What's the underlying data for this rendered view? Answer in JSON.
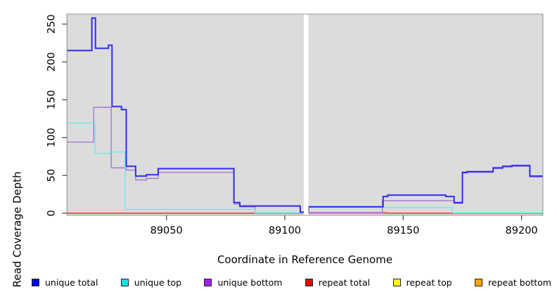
{
  "chart_data": {
    "type": "line",
    "subtype": "step-coverage-plot",
    "title": "",
    "xlabel": "Coordinate in Reference Genome",
    "ylabel": "Read Coverage Depth",
    "plot_background": "#DCDCDC",
    "gap_region": {
      "start": 89108,
      "end": 89110,
      "color": "#FFFFFF"
    },
    "x_axis": {
      "min": 89008,
      "max": 89209,
      "ticks": [
        89050,
        89100,
        89150,
        89200
      ],
      "tick_labels": [
        "89050",
        "89100",
        "89150",
        "89200"
      ]
    },
    "y_axis": {
      "min": 0,
      "max": 258,
      "ticks": [
        0,
        50,
        100,
        150,
        200,
        250
      ],
      "tick_labels": [
        "0",
        "50",
        "100",
        "150",
        "200",
        "250"
      ]
    },
    "legend": [
      {
        "label": "unique total",
        "color": "#0000EE"
      },
      {
        "label": "unique top",
        "color": "#00E5E5"
      },
      {
        "label": "unique bottom",
        "color": "#A020F0"
      },
      {
        "label": "repeat total",
        "color": "#EE0000"
      },
      {
        "label": "repeat top",
        "color": "#FFFF00"
      },
      {
        "label": "repeat bottom",
        "color": "#FFA500"
      }
    ],
    "series": [
      {
        "name": "repeat top",
        "line_color": "#FFFF00",
        "width": 1.6,
        "end": 89209,
        "points": [
          [
            89008,
            0
          ]
        ]
      },
      {
        "name": "repeat bottom",
        "line_color": "#FFA500",
        "width": 2,
        "end": 89209,
        "points": [
          [
            89008,
            0
          ]
        ]
      },
      {
        "name": "repeat total",
        "line_color": "#D84A6B",
        "width": 1.4,
        "end": 89209,
        "points": [
          [
            89008,
            0
          ],
          [
            89110,
            0.8
          ],
          [
            89143,
            0
          ]
        ]
      },
      {
        "name": "unique bottom",
        "line_color": "#A876D6",
        "width": 1.4,
        "end": 89209,
        "points": [
          [
            89008,
            94
          ],
          [
            89019.3,
            140
          ],
          [
            89026.7,
            60
          ],
          [
            89033,
            57
          ],
          [
            89037,
            44
          ],
          [
            89041.5,
            46
          ],
          [
            89046.5,
            54
          ],
          [
            89078.5,
            12
          ],
          [
            89081,
            8.5
          ],
          [
            89087.5,
            0.5
          ],
          [
            89141.2,
            16.5
          ],
          [
            89171.5,
            13
          ],
          [
            89175,
            53
          ],
          [
            89177,
            54
          ],
          [
            89188,
            59
          ],
          [
            89192,
            61
          ],
          [
            89196,
            62
          ],
          [
            89203.5,
            48
          ]
        ]
      },
      {
        "name": "unique top",
        "line_color": "#6FE9E9",
        "width": 1.4,
        "end": 89209,
        "points": [
          [
            89008,
            119
          ],
          [
            89019.8,
            79
          ],
          [
            89026,
            81
          ],
          [
            89032.5,
            5
          ],
          [
            89087.5,
            0.5
          ],
          [
            89110,
            7.5
          ],
          [
            89170.8,
            0.5
          ]
        ]
      },
      {
        "name": "unique total",
        "line_color": "#2D2DF0",
        "width": 2,
        "end": 89209,
        "points": [
          [
            89008,
            215
          ],
          [
            89018.5,
            258
          ],
          [
            89020,
            218
          ],
          [
            89025.5,
            222
          ],
          [
            89027,
            141
          ],
          [
            89031,
            137
          ],
          [
            89033,
            62
          ],
          [
            89037,
            49
          ],
          [
            89041.5,
            51
          ],
          [
            89046.5,
            59
          ],
          [
            89078.5,
            14
          ],
          [
            89081,
            9.5
          ],
          [
            89106.5,
            1.5
          ],
          [
            89110,
            8.5
          ],
          [
            89141.5,
            22
          ],
          [
            89143.5,
            24
          ],
          [
            89168,
            22
          ],
          [
            89171.5,
            14
          ],
          [
            89175,
            54
          ],
          [
            89177,
            55
          ],
          [
            89188,
            60
          ],
          [
            89192,
            62
          ],
          [
            89196,
            63
          ],
          [
            89203.5,
            49
          ]
        ]
      }
    ]
  },
  "labels": {
    "x_title": "Coordinate in Reference Genome",
    "y_title": "Read Coverage Depth"
  }
}
